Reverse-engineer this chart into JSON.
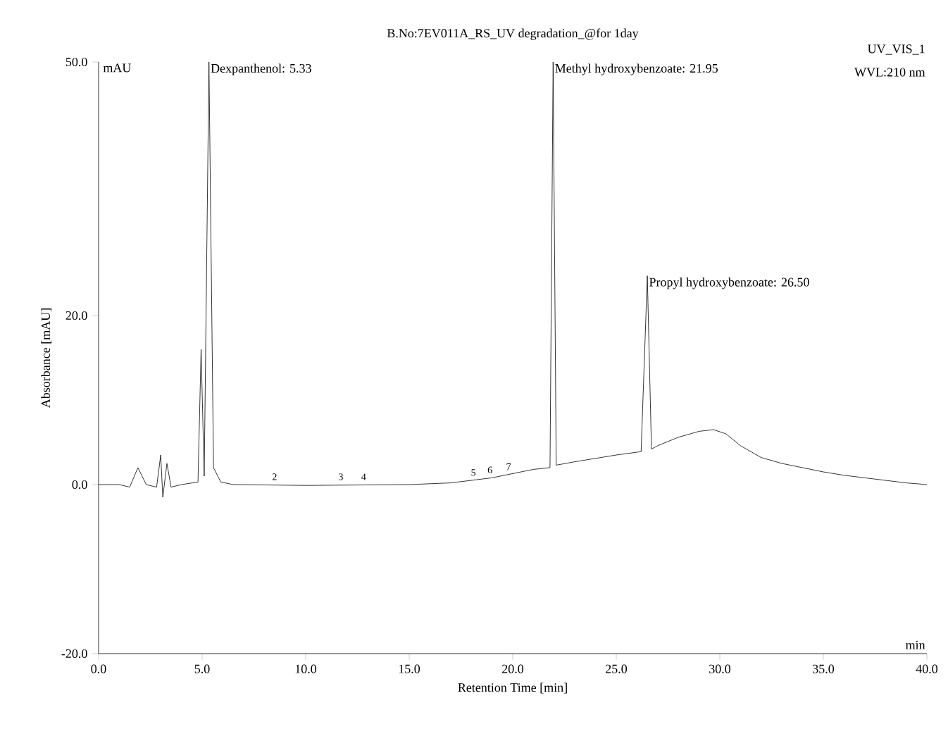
{
  "chart_data": {
    "type": "line",
    "title": "B.No:7EV011A_RS_UV degradation_@for 1day",
    "xlabel": "Retention Time [min]",
    "ylabel": "Absorbance [mAU]",
    "x": [
      0,
      1.0,
      1.5,
      1.9,
      2.3,
      2.8,
      3.0,
      3.1,
      3.3,
      3.5,
      4.0,
      4.8,
      4.95,
      5.1,
      5.33,
      5.55,
      5.9,
      6.5,
      10,
      15,
      17,
      18,
      19,
      20,
      21,
      21.8,
      21.95,
      22.1,
      23,
      24,
      25,
      26.2,
      26.5,
      26.7,
      27,
      28,
      29,
      29.7,
      30.3,
      31,
      32,
      33,
      34,
      35,
      36,
      37,
      38,
      39,
      40
    ],
    "series": [
      {
        "color": "#000000",
        "values": [
          0,
          0,
          -0.3,
          2,
          0,
          -0.3,
          3.5,
          -1.5,
          2.5,
          -0.3,
          0,
          0.3,
          16,
          1,
          50,
          2,
          0.3,
          0,
          -0.1,
          0,
          0.2,
          0.5,
          0.8,
          1.3,
          1.8,
          2,
          50,
          2.3,
          2.7,
          3.1,
          3.5,
          3.9,
          24.7,
          4.2,
          4.6,
          5.6,
          6.3,
          6.5,
          6,
          4.6,
          3.2,
          2.5,
          2,
          1.5,
          1.1,
          0.8,
          0.5,
          0.2,
          0
        ]
      }
    ],
    "xlim": [
      0,
      40
    ],
    "ylim": [
      -20,
      50
    ],
    "xticks": [
      {
        "value": 0,
        "label": "0.0"
      },
      {
        "value": 5,
        "label": "5.0"
      },
      {
        "value": 10,
        "label": "10.0"
      },
      {
        "value": 15,
        "label": "15.0"
      },
      {
        "value": 20,
        "label": "20.0"
      },
      {
        "value": 25,
        "label": "25.0"
      },
      {
        "value": 30,
        "label": "30.0"
      },
      {
        "value": 35,
        "label": "35.0"
      },
      {
        "value": 40,
        "label": "40.0"
      }
    ],
    "yticks": [
      {
        "value": -20,
        "label": "-20.0"
      },
      {
        "value": 0,
        "label": "0.0"
      },
      {
        "value": 20,
        "label": "20.0"
      },
      {
        "value": 50,
        "label": "50.0"
      }
    ],
    "annotations": [
      {
        "text": "Dexpanthenol: 5.33",
        "x": 5.33,
        "y": 50
      },
      {
        "text": "Methyl hydroxybenzoate: 21.95",
        "x": 21.95,
        "y": 50
      },
      {
        "text": "Propyl hydroxybenzoate: 26.50",
        "x": 26.5,
        "y": 24.7
      },
      {
        "text": "2",
        "x": 8.5,
        "y": 0
      },
      {
        "text": "3",
        "x": 11.7,
        "y": 0
      },
      {
        "text": "4",
        "x": 12.8,
        "y": 0
      },
      {
        "text": "5",
        "x": 18.1,
        "y": 0.5
      },
      {
        "text": "6",
        "x": 18.9,
        "y": 0.8
      },
      {
        "text": "7",
        "x": 19.8,
        "y": 1.2
      },
      "mAU",
      "UV_VIS_1",
      "WVL:210 nm",
      "min"
    ],
    "grid": false,
    "marker": "none",
    "line_style": "solid"
  }
}
